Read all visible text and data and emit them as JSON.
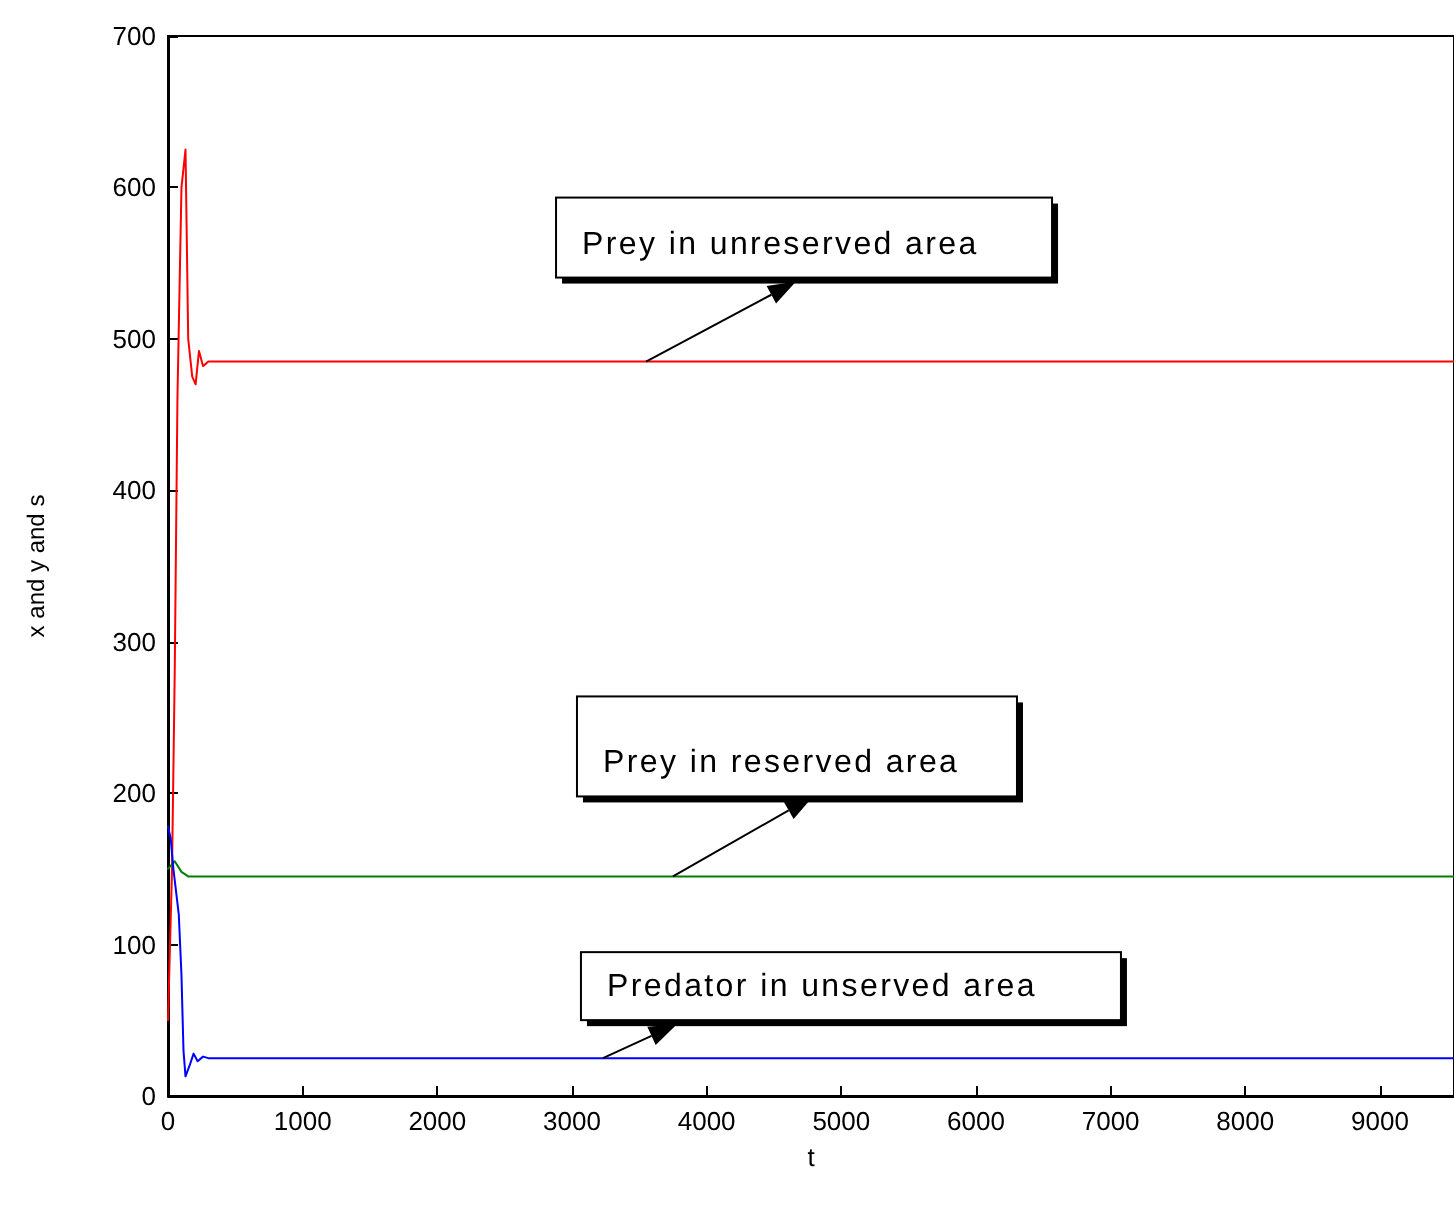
{
  "chart_data": {
    "type": "line",
    "xlabel": "t",
    "ylabel": "x and y and s",
    "xlim": [
      0,
      9550
    ],
    "xticks": [
      0,
      1000,
      2000,
      3000,
      4000,
      5000,
      6000,
      7000,
      8000,
      9000
    ],
    "ylim": [
      0,
      700
    ],
    "yticks": [
      0,
      100,
      200,
      300,
      400,
      500,
      600,
      700
    ],
    "grid": false,
    "marker": "none",
    "line_style": "solid",
    "series": [
      {
        "color": "#ff0000",
        "x": [
          0,
          30,
          50,
          70,
          100,
          130,
          150,
          180,
          205,
          230,
          260,
          300,
          9550
        ],
        "values": [
          50,
          150,
          280,
          460,
          600,
          625,
          500,
          475,
          470,
          492,
          482,
          485,
          485
        ]
      },
      {
        "color": "#008000",
        "x": [
          0,
          50,
          100,
          150,
          9550
        ],
        "values": [
          150,
          155,
          148,
          145,
          145
        ]
      },
      {
        "color": "#0000ff",
        "x": [
          0,
          20,
          40,
          80,
          100,
          115,
          130,
          160,
          190,
          220,
          260,
          300,
          9550
        ],
        "values": [
          178,
          170,
          150,
          120,
          80,
          30,
          13,
          20,
          28,
          23,
          26,
          25,
          25
        ]
      }
    ],
    "annotations": [
      {
        "text": "Prey in unreserved area",
        "x": 3550,
        "y": 485
      },
      {
        "text": "Prey in reserved area",
        "x": 3750,
        "y": 145
      },
      {
        "text": "Predator in unserved area",
        "x": 3230,
        "y": 25
      }
    ]
  }
}
